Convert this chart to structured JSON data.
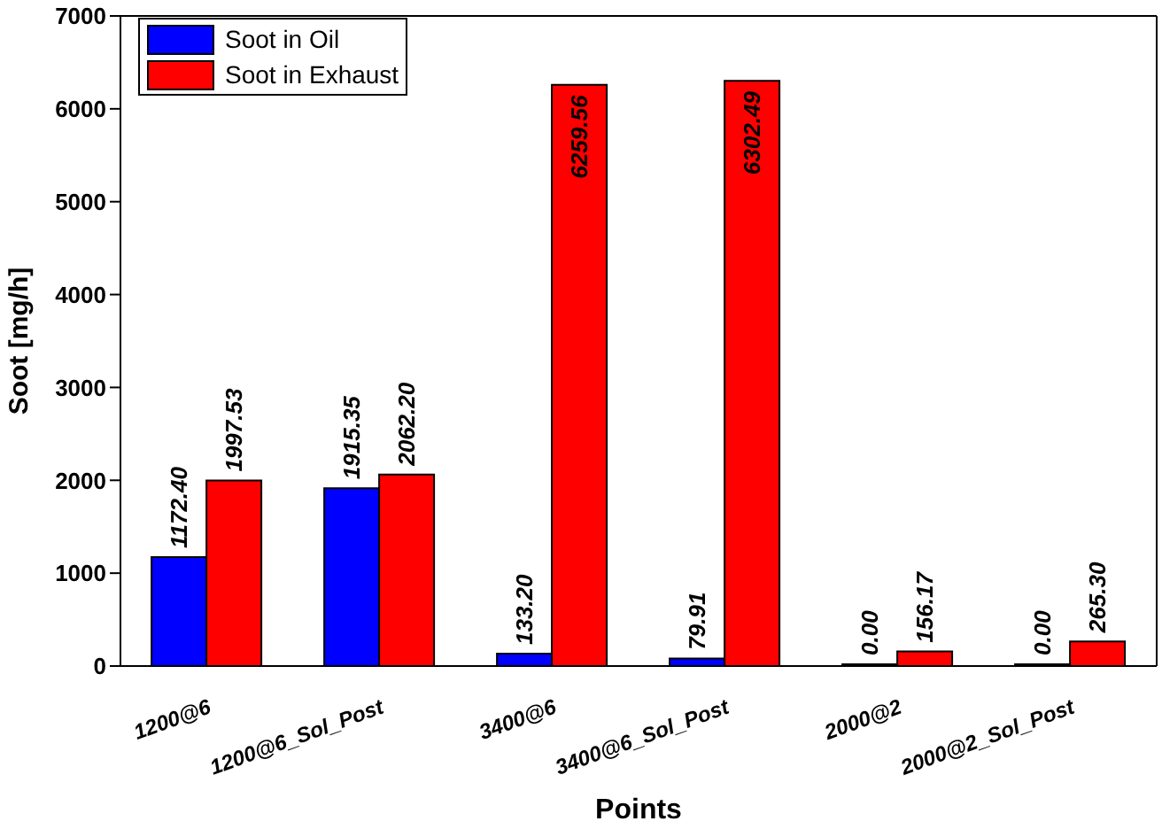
{
  "chart_data": {
    "type": "bar",
    "xlabel": "Points",
    "ylabel": "Soot [mg/h]",
    "categories": [
      "1200@6",
      "1200@6_Sol_Post",
      "3400@6",
      "3400@6_Sol_Post",
      "2000@2",
      "2000@2_Sol_Post"
    ],
    "series": [
      {
        "name": "Soot in Oil",
        "color": "#0000ff",
        "values": [
          1172.4,
          1915.35,
          133.2,
          79.91,
          0,
          0
        ],
        "value_labels": [
          "1172.40",
          "1915.35",
          "133.20",
          "79.91",
          "0.00",
          "0.00"
        ]
      },
      {
        "name": "Soot in Exhaust",
        "color": "#ff0000",
        "values": [
          1997.53,
          2062.2,
          6259.56,
          6302.49,
          156.17,
          265.3
        ],
        "value_labels": [
          "1997.53",
          "2062.20",
          "6259.56",
          "6302.49",
          "156.17",
          "265.30"
        ]
      }
    ],
    "ylim": [
      0,
      7000
    ],
    "yticks": [
      0,
      1000,
      2000,
      3000,
      4000,
      5000,
      6000,
      7000
    ],
    "grid": false,
    "legend": "top left"
  }
}
